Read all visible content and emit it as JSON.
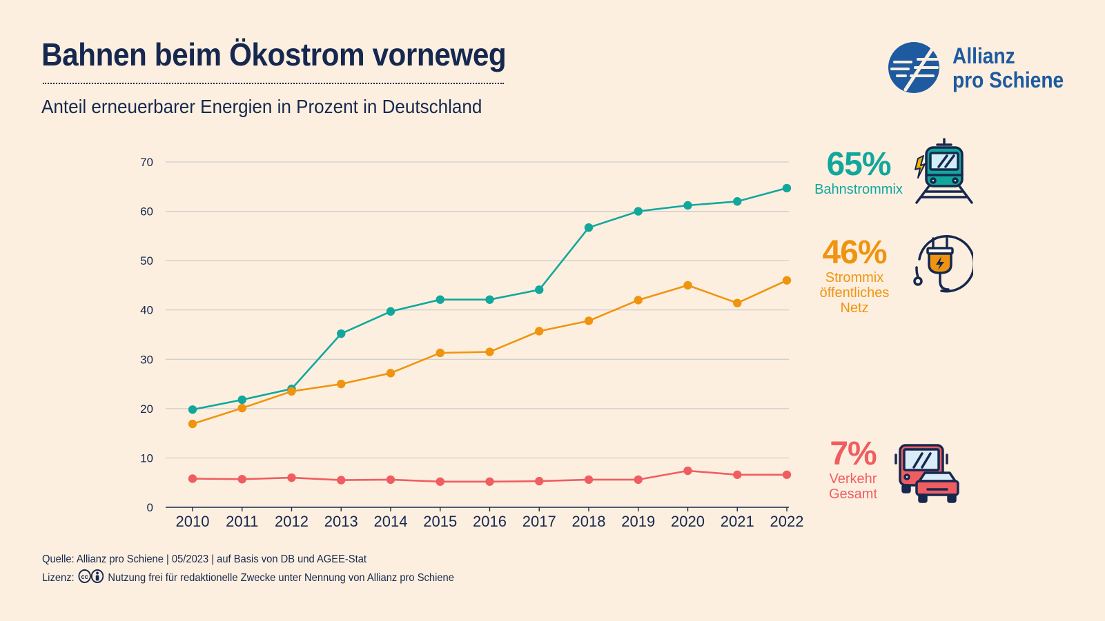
{
  "header": {
    "title": "Bahnen beim Ökostrom vorneweg",
    "subtitle": "Anteil erneuerbarer Energien in Prozent in Deutschland"
  },
  "logo": {
    "line1": "Allianz",
    "line2": "pro Schiene"
  },
  "callouts": {
    "bahn": {
      "value": "65%",
      "label": "Bahnstrommix",
      "icon": "train-icon"
    },
    "strom": {
      "value": "46%",
      "label_lines": [
        "Strommix",
        "öffentliches",
        "Netz"
      ],
      "icon": "plug-icon"
    },
    "verkehr": {
      "value": "7%",
      "label_lines": [
        "Verkehr",
        "Gesamt"
      ],
      "icon": "bus-car-icon"
    }
  },
  "footer": {
    "source": "Quelle: Allianz pro Schiene | 05/2023 | auf Basis von DB und AGEE-Stat",
    "license_label": "Lizenz:",
    "license_text": "Nutzung frei für redaktionelle Zwecke unter Nennung von Allianz pro Schiene"
  },
  "colors": {
    "background": "#fdefdf",
    "navy": "#16284f",
    "teal": "#12a79d",
    "orange": "#ef9410",
    "red": "#f05d61",
    "logo_blue": "#1d5aa0"
  },
  "chart_data": {
    "type": "line",
    "title": "Bahnen beim Ökostrom vorneweg",
    "subtitle": "Anteil erneuerbarer Energien in Prozent in Deutschland",
    "xlabel": "",
    "ylabel": "",
    "ylim": [
      0,
      70
    ],
    "yticks": [
      0,
      10,
      20,
      30,
      40,
      50,
      60,
      70
    ],
    "grid": true,
    "x": [
      "2010",
      "2011",
      "2012",
      "2013",
      "2014",
      "2015",
      "2016",
      "2017",
      "2018",
      "2019",
      "2020",
      "2021",
      "2022"
    ],
    "series": [
      {
        "name": "Bahnstrommix",
        "color": "#12a79d",
        "values": [
          19.8,
          21.8,
          24.0,
          35.2,
          39.7,
          42.1,
          42.1,
          44.1,
          56.7,
          60.0,
          61.2,
          62.0,
          64.7
        ]
      },
      {
        "name": "Strommix öffentliches Netz",
        "color": "#ef9410",
        "values": [
          16.9,
          20.1,
          23.5,
          25.0,
          27.2,
          31.3,
          31.5,
          35.7,
          37.8,
          42.0,
          45.0,
          41.4,
          46.0
        ]
      },
      {
        "name": "Verkehr Gesamt",
        "color": "#f05d61",
        "values": [
          5.8,
          5.7,
          6.0,
          5.5,
          5.6,
          5.2,
          5.2,
          5.3,
          5.6,
          5.6,
          7.4,
          6.6,
          6.6
        ]
      }
    ]
  }
}
